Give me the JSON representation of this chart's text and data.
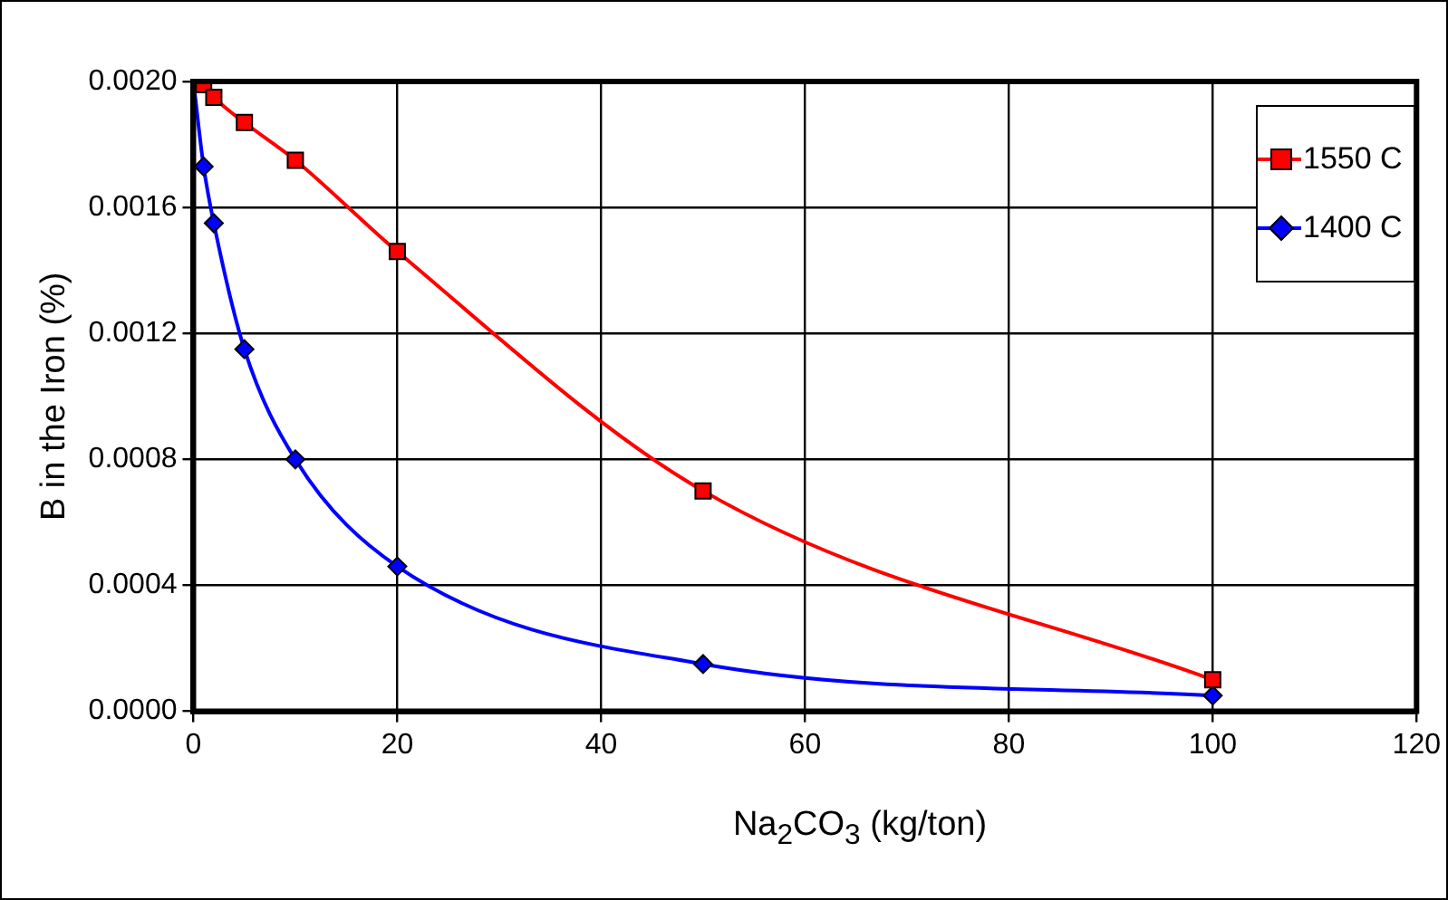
{
  "chart_data": {
    "type": "line",
    "xlabel": "Na$_{2}$CO$_{3}$ (kg/ton)",
    "ylabel": "B in the Iron (%)",
    "series": [
      {
        "name": "1550 C",
        "color": "#ff0000",
        "marker": "square",
        "x": [
          0,
          1,
          2,
          5,
          10,
          20,
          50,
          100
        ],
        "values": [
          0.002,
          0.00199,
          0.00195,
          0.00187,
          0.00175,
          0.00146,
          0.0007,
          0.0001
        ]
      },
      {
        "name": "1400 C",
        "color": "#0000ff",
        "marker": "diamond",
        "x": [
          0,
          1,
          2,
          5,
          10,
          20,
          50,
          100
        ],
        "values": [
          0.002,
          0.00173,
          0.00155,
          0.00115,
          0.0008,
          0.00046,
          0.00015,
          5e-05
        ]
      }
    ],
    "xlim": [
      0,
      120
    ],
    "xticks": [
      0,
      20,
      40,
      60,
      80,
      100,
      120
    ],
    "ylim": [
      0,
      0.002
    ],
    "yticks": [
      {
        "value": 0,
        "label": "0.0000"
      },
      {
        "value": 0.0004,
        "label": "0.0004"
      },
      {
        "value": 0.0008,
        "label": "0.0008"
      },
      {
        "value": 0.0012,
        "label": "0.0012"
      },
      {
        "value": 0.0016,
        "label": "0.0016"
      },
      {
        "value": 0.002,
        "label": "0.0020"
      }
    ],
    "grid": true,
    "legend": "top right"
  }
}
